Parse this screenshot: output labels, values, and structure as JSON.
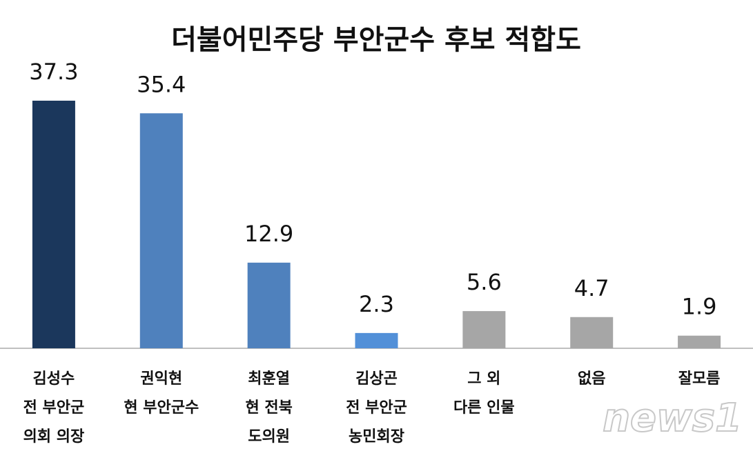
{
  "chart_data": {
    "type": "bar",
    "title": "더불어민주당 부안군수 후보 적합도",
    "categories": [
      [
        "김성수",
        "전 부안군",
        "의회 의장"
      ],
      [
        "권익현",
        "현 부안군수"
      ],
      [
        "최훈열",
        "현 전북",
        "도의원"
      ],
      [
        "김상곤",
        "전 부안군",
        "농민회장"
      ],
      [
        "그 외",
        "다른 인물"
      ],
      [
        "없음"
      ],
      [
        "잘모름"
      ]
    ],
    "values": [
      37.3,
      35.4,
      12.9,
      2.3,
      5.6,
      4.7,
      1.9
    ],
    "colors": [
      "#1b375c",
      "#4f81bd",
      "#4f81bd",
      "#5290d8",
      "#a6a6a6",
      "#a6a6a6",
      "#a6a6a6"
    ],
    "ylim": [
      0,
      40
    ],
    "watermark": "news1"
  }
}
